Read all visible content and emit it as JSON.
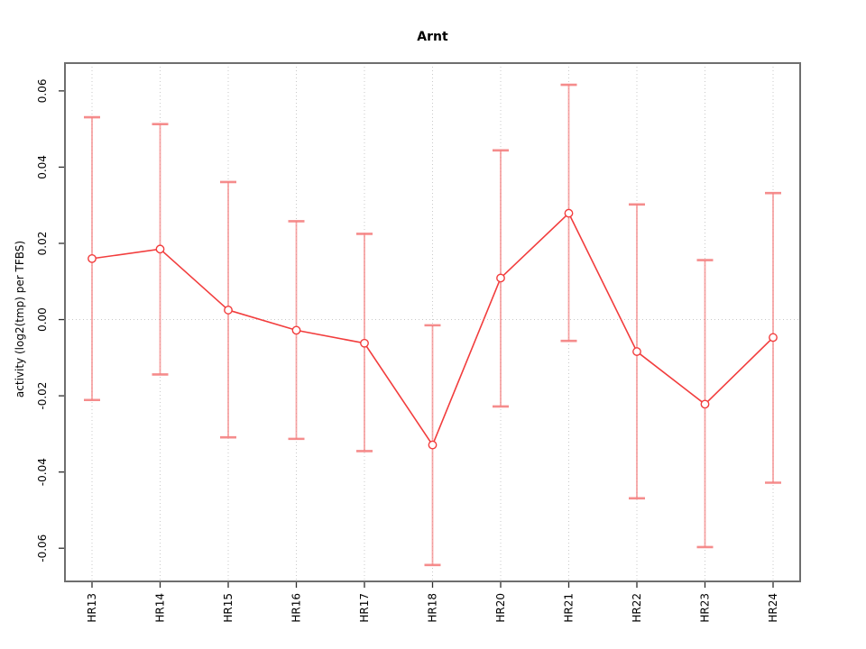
{
  "chart_data": {
    "type": "line",
    "title": "Arnt",
    "xlabel": "",
    "ylabel": "activity (log2(tmp) per TFBS)",
    "categories": [
      "HR13",
      "HR14",
      "HR15",
      "HR16",
      "HR17",
      "HR18",
      "HR20",
      "HR21",
      "HR22",
      "HR23",
      "HR24"
    ],
    "series": [
      {
        "name": "activity",
        "values": [
          0.016,
          0.0185,
          0.0025,
          -0.0028,
          -0.0062,
          -0.0329,
          0.0109,
          0.0279,
          -0.0084,
          -0.0222,
          -0.0047
        ],
        "upper": [
          0.0531,
          0.0513,
          0.0361,
          0.0258,
          0.0225,
          -0.0015,
          0.0444,
          0.0616,
          0.0302,
          0.0156,
          0.0332
        ],
        "lower": [
          -0.0211,
          -0.0144,
          -0.0309,
          -0.0313,
          -0.0345,
          -0.0644,
          -0.0228,
          -0.0056,
          -0.0469,
          -0.0597,
          -0.0428
        ]
      }
    ],
    "yticks": [
      -0.06,
      -0.04,
      -0.02,
      0.0,
      0.02,
      0.04,
      0.06
    ],
    "ytick_labels": [
      "-0.06",
      "-0.04",
      "-0.02",
      "0.00",
      "0.02",
      "0.04",
      "0.06"
    ],
    "ylim": [
      -0.0687,
      0.0673
    ],
    "grid": "vertical dotted gridlines at each category; dotted horizontal line at y=0",
    "legend": "none",
    "marker": "open-circle",
    "colors": {
      "line": "#f23d3d",
      "point_stroke": "#f23d3d",
      "point_fill": "#ffffff",
      "error_bar": "#f58080",
      "grid": "#c9c9c9",
      "frame": "#6e6e6e",
      "tick": "#2e2e2e",
      "text": "#000000",
      "background": "#ffffff"
    }
  }
}
